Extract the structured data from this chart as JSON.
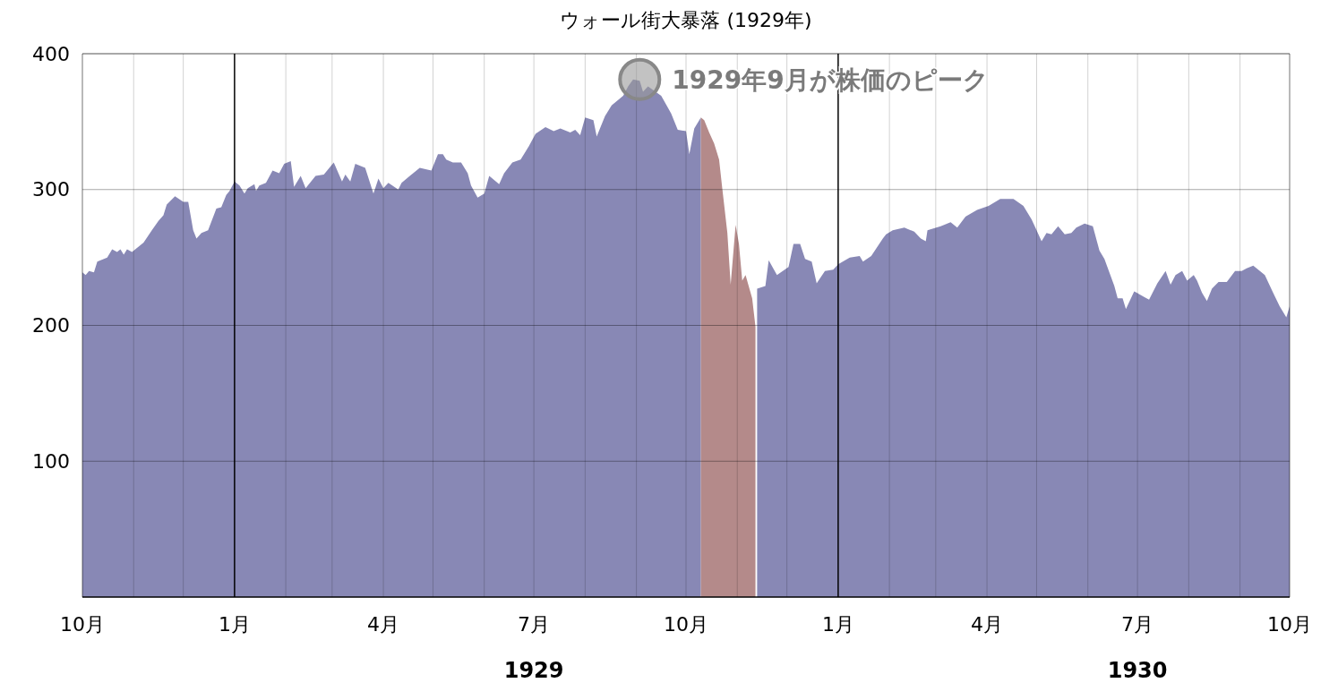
{
  "chart_data": {
    "type": "area",
    "title": "ウォール街大暴落 (1929年)",
    "series": [
      {
        "color": "#8888b5",
        "x": [
          "1928-10-01",
          "1928-10-03",
          "1928-10-05",
          "1928-10-08",
          "1928-10-10",
          "1928-10-16",
          "1928-10-19",
          "1928-10-22",
          "1928-10-24",
          "1928-10-26",
          "1928-10-28",
          "1928-10-31",
          "1928-11-07",
          "1928-11-12",
          "1928-11-16",
          "1928-11-19",
          "1928-11-21",
          "1928-11-26",
          "1928-12-01",
          "1928-12-04",
          "1928-12-07",
          "1928-12-09",
          "1928-12-12",
          "1928-12-16",
          "1928-12-21",
          "1928-12-24",
          "1928-12-27",
          "1928-12-29",
          "1929-01-01",
          "1929-01-04",
          "1929-01-07",
          "1929-01-09",
          "1929-01-13",
          "1929-01-14",
          "1929-01-16",
          "1929-01-20",
          "1929-01-24",
          "1929-01-28",
          "1929-01-31",
          "1929-02-04",
          "1929-02-06",
          "1929-02-10",
          "1929-02-13",
          "1929-02-19",
          "1929-02-24",
          "1929-03-02",
          "1929-03-07",
          "1929-03-09",
          "1929-03-12",
          "1929-03-15",
          "1929-03-21",
          "1929-03-26",
          "1929-03-29",
          "1929-04-01",
          "1929-04-04",
          "1929-04-10",
          "1929-04-12",
          "1929-04-17",
          "1929-04-23",
          "1929-04-30",
          "1929-05-04",
          "1929-05-07",
          "1929-05-09",
          "1929-05-13",
          "1929-05-18",
          "1929-05-22",
          "1929-05-24",
          "1929-05-28",
          "1929-06-01",
          "1929-06-04",
          "1929-06-10",
          "1929-06-13",
          "1929-06-18",
          "1929-06-23",
          "1929-06-28",
          "1929-07-02",
          "1929-07-08",
          "1929-07-13",
          "1929-07-17",
          "1929-07-23",
          "1929-07-26",
          "1929-07-29",
          "1929-08-01",
          "1929-08-06",
          "1929-08-08",
          "1929-08-13",
          "1929-08-17",
          "1929-08-24",
          "1929-08-27",
          "1929-08-30",
          "1929-09-03",
          "1929-09-05",
          "1929-09-08",
          "1929-09-16",
          "1929-09-22",
          "1929-09-26",
          "1929-10-01",
          "1929-10-03",
          "1929-10-06",
          "1929-10-10"
        ],
        "values": [
          239,
          237,
          240,
          239,
          247,
          250,
          256,
          254,
          256,
          252,
          256,
          254,
          261,
          270,
          277,
          281,
          289,
          295,
          291,
          291,
          270,
          264,
          268,
          270,
          286,
          287,
          296,
          299,
          306,
          303,
          297,
          301,
          304,
          299,
          303,
          305,
          314,
          312,
          319,
          321,
          302,
          310,
          301,
          310,
          311,
          320,
          306,
          311,
          306,
          319,
          316,
          297,
          308,
          301,
          305,
          300,
          305,
          310,
          316,
          314,
          326,
          326,
          322,
          320,
          320,
          312,
          303,
          294,
          297,
          310,
          304,
          312,
          320,
          322,
          332,
          341,
          346,
          343,
          345,
          342,
          344,
          340,
          353,
          351,
          339,
          354,
          362,
          369,
          376,
          381,
          380,
          372,
          376,
          369,
          356,
          344,
          343,
          326,
          345,
          353
        ]
      },
      {
        "color": "#b48a8a",
        "x": [
          "1929-10-10",
          "1929-10-12",
          "1929-10-15",
          "1929-10-18",
          "1929-10-21",
          "1929-10-23",
          "1929-10-26",
          "1929-10-28",
          "1929-10-31",
          "1929-11-02",
          "1929-11-04",
          "1929-11-06",
          "1929-11-10",
          "1929-11-12"
        ],
        "values": [
          353,
          351,
          342,
          334,
          322,
          300,
          268,
          230,
          274,
          260,
          233,
          237,
          220,
          199
        ]
      },
      {
        "color": "#8888b5",
        "x": [
          "1929-11-13",
          "1929-11-18",
          "1929-11-20",
          "1929-11-25",
          "1929-12-02",
          "1929-12-05",
          "1929-12-09",
          "1929-12-12",
          "1929-12-16",
          "1929-12-19",
          "1929-12-24",
          "1929-12-29",
          "1930-01-01",
          "1930-01-08",
          "1930-01-14",
          "1930-01-16",
          "1930-01-21",
          "1930-01-28",
          "1930-01-30",
          "1930-02-03",
          "1930-02-10",
          "1930-02-16",
          "1930-02-20",
          "1930-02-23",
          "1930-02-24",
          "1930-03-04",
          "1930-03-10",
          "1930-03-14",
          "1930-03-19",
          "1930-03-26",
          "1930-04-02",
          "1930-04-09",
          "1930-04-17",
          "1930-04-23",
          "1930-04-28",
          "1930-05-04",
          "1930-05-07",
          "1930-05-10",
          "1930-05-14",
          "1930-05-18",
          "1930-05-22",
          "1930-05-25",
          "1930-05-30",
          "1930-06-04",
          "1930-06-08",
          "1930-06-11",
          "1930-06-17",
          "1930-06-19",
          "1930-06-22",
          "1930-06-24",
          "1930-06-29",
          "1930-07-05",
          "1930-07-08",
          "1930-07-13",
          "1930-07-18",
          "1930-07-21",
          "1930-07-24",
          "1930-07-28",
          "1930-07-31",
          "1930-08-04",
          "1930-08-06",
          "1930-08-09",
          "1930-08-12",
          "1930-08-15",
          "1930-08-19",
          "1930-08-24",
          "1930-08-29",
          "1930-09-02",
          "1930-09-05",
          "1930-09-09",
          "1930-09-16",
          "1930-09-21",
          "1930-09-25",
          "1930-09-29",
          "1930-10-01"
        ],
        "values": [
          227,
          229,
          248,
          237,
          243,
          260,
          260,
          249,
          247,
          231,
          240,
          241,
          245,
          250,
          251,
          247,
          251,
          264,
          267,
          270,
          272,
          269,
          264,
          262,
          270,
          273,
          276,
          272,
          280,
          285,
          288,
          293,
          293,
          288,
          278,
          262,
          268,
          267,
          273,
          267,
          268,
          272,
          275,
          273,
          255,
          249,
          229,
          220,
          220,
          212,
          225,
          221,
          219,
          231,
          240,
          230,
          237,
          240,
          233,
          237,
          233,
          224,
          218,
          227,
          232,
          232,
          240,
          240,
          242,
          244,
          237,
          224,
          214,
          206,
          214
        ]
      }
    ],
    "xlim": [
      "1928-10-01",
      "1930-10-01"
    ],
    "xticks": [
      {
        "value": "1928-10",
        "label": "10月"
      },
      {
        "value": "1928-11",
        "label": null
      },
      {
        "value": "1928-12",
        "label": null
      },
      {
        "value": "1929-01",
        "label": "1月"
      },
      {
        "value": "1929-02",
        "label": null
      },
      {
        "value": "1929-03",
        "label": null
      },
      {
        "value": "1929-04",
        "label": "4月"
      },
      {
        "value": "1929-05",
        "label": null
      },
      {
        "value": "1929-06",
        "label": null
      },
      {
        "value": "1929-07",
        "label": "7月"
      },
      {
        "value": "1929-08",
        "label": null
      },
      {
        "value": "1929-09",
        "label": null
      },
      {
        "value": "1929-10",
        "label": "10月"
      },
      {
        "value": "1929-11",
        "label": null
      },
      {
        "value": "1929-12",
        "label": null
      },
      {
        "value": "1930-01",
        "label": "1月"
      },
      {
        "value": "1930-02",
        "label": null
      },
      {
        "value": "1930-03",
        "label": null
      },
      {
        "value": "1930-04",
        "label": "4月"
      },
      {
        "value": "1930-05",
        "label": null
      },
      {
        "value": "1930-06",
        "label": null
      },
      {
        "value": "1930-07",
        "label": "7月"
      },
      {
        "value": "1930-08",
        "label": null
      },
      {
        "value": "1930-09",
        "label": null
      },
      {
        "value": "1930-10",
        "label": "10月"
      }
    ],
    "ylim": [
      0,
      400
    ],
    "yticks": [
      100,
      200,
      300,
      400
    ],
    "grid": true,
    "annotations": [
      {
        "text": "1929年9月が株価のピーク",
        "x": "1929-09-03",
        "y": 381
      },
      "1929",
      "1930"
    ]
  }
}
